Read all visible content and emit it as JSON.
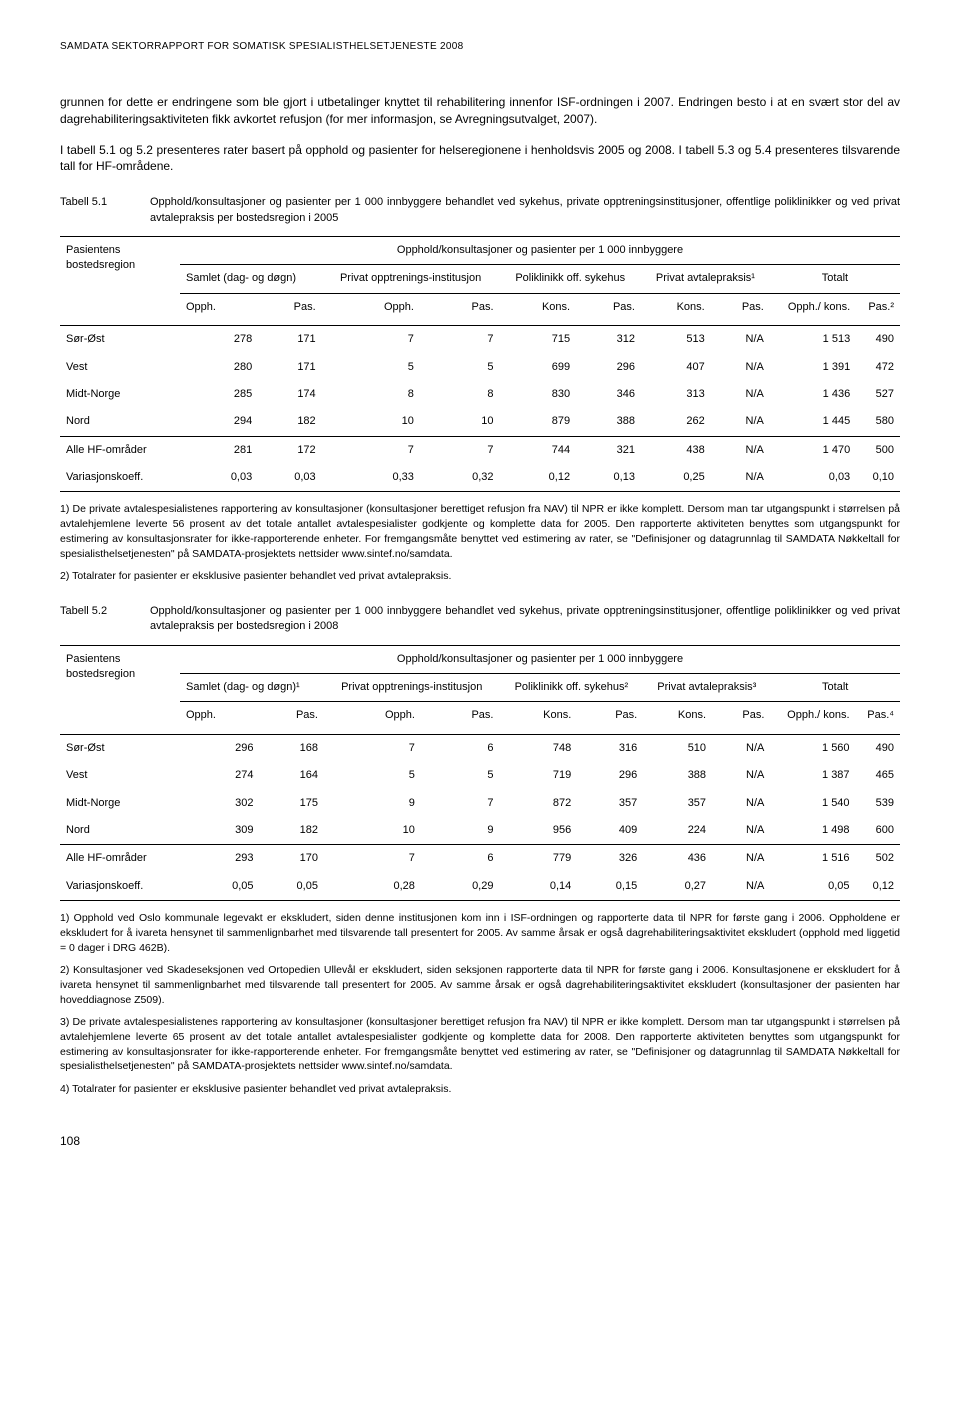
{
  "running_header": "SAMDATA SEKTORRAPPORT FOR SOMATISK SPESIALISTHELSETJENESTE 2008",
  "paragraphs": {
    "p1": "grunnen for dette er endringene som ble gjort i utbetalinger knyttet til rehabilitering innenfor ISF-ordningen i 2007. Endringen besto i at en svært stor del av dagrehabiliteringsaktiviteten fikk avkortet refusjon (for mer informasjon, se Avregningsutvalget, 2007).",
    "p2": "I tabell 5.1 og 5.2 presenteres rater basert på opphold og pasienter for helseregionene i henholdsvis 2005 og 2008. I tabell 5.3 og 5.4 presenteres tilsvarende tall for HF-områdene."
  },
  "table1": {
    "caption_label": "Tabell 5.1",
    "caption_text": "Opphold/konsultasjoner og pasienter per 1 000 innbyggere behandlet ved sykehus, private opptreningsinstitusjoner, offentlige poliklinikker og ved privat avtalepraksis per bostedsregion i 2005",
    "row_header": "Pasientens bostedsregion",
    "span_header": "Opphold/konsultasjoner og pasienter per 1 000 innbyggere",
    "group1": "Samlet (dag- og døgn)",
    "group2": "Privat opptrenings-institusjon",
    "group3": "Poliklinikk off. sykehus",
    "group4": "Privat avtalepraksis¹",
    "group5": "Totalt",
    "sub": [
      "Opph.",
      "Pas.",
      "Opph.",
      "Pas.",
      "Kons.",
      "Pas.",
      "Kons.",
      "Pas.",
      "Opph./ kons.",
      "Pas.²"
    ],
    "rows": [
      {
        "label": "Sør-Øst",
        "v": [
          "278",
          "171",
          "7",
          "7",
          "715",
          "312",
          "513",
          "N/A",
          "1 513",
          "490"
        ]
      },
      {
        "label": "Vest",
        "v": [
          "280",
          "171",
          "5",
          "5",
          "699",
          "296",
          "407",
          "N/A",
          "1 391",
          "472"
        ]
      },
      {
        "label": "Midt-Norge",
        "v": [
          "285",
          "174",
          "8",
          "8",
          "830",
          "346",
          "313",
          "N/A",
          "1 436",
          "527"
        ]
      },
      {
        "label": "Nord",
        "v": [
          "294",
          "182",
          "10",
          "10",
          "879",
          "388",
          "262",
          "N/A",
          "1 445",
          "580"
        ]
      }
    ],
    "totals": [
      {
        "label": "Alle HF-områder",
        "v": [
          "281",
          "172",
          "7",
          "7",
          "744",
          "321",
          "438",
          "N/A",
          "1 470",
          "500"
        ]
      },
      {
        "label": "Variasjonskoeff.",
        "v": [
          "0,03",
          "0,03",
          "0,33",
          "0,32",
          "0,12",
          "0,13",
          "0,25",
          "N/A",
          "0,03",
          "0,10"
        ]
      }
    ],
    "fn1": "1) De private avtalespesialistenes rapportering av konsultasjoner (konsultasjoner berettiget refusjon fra NAV) til NPR er ikke komplett. Dersom man tar utgangspunkt i størrelsen på avtalehjemlene leverte 56 prosent av det totale antallet avtalespesialister godkjente og komplette data for 2005. Den rapporterte aktiviteten benyttes som utgangspunkt for estimering av konsultasjonsrater for ikke-rapporterende enheter. For fremgangsmåte benyttet ved estimering av rater, se \"Definisjoner og datagrunnlag til SAMDATA Nøkkeltall for spesialisthelsetjenesten\" på SAMDATA-prosjektets nettsider www.sintef.no/samdata.",
    "fn2": "2) Totalrater for pasienter er eksklusive pasienter behandlet ved privat avtalepraksis."
  },
  "table2": {
    "caption_label": "Tabell 5.2",
    "caption_text": "Opphold/konsultasjoner og pasienter per 1 000 innbyggere behandlet ved sykehus, private opptreningsinstitusjoner, offentlige poliklinikker og ved privat avtalepraksis per bostedsregion i 2008",
    "row_header": "Pasientens bostedsregion",
    "span_header": "Opphold/konsultasjoner og pasienter per 1 000 innbyggere",
    "group1": "Samlet (dag- og døgn)¹",
    "group2": "Privat opptrenings-institusjon",
    "group3": "Poliklinikk off. sykehus²",
    "group4": "Privat avtalepraksis³",
    "group5": "Totalt",
    "sub": [
      "Opph.",
      "Pas.",
      "Opph.",
      "Pas.",
      "Kons.",
      "Pas.",
      "Kons.",
      "Pas.",
      "Opph./ kons.",
      "Pas.⁴"
    ],
    "rows": [
      {
        "label": "Sør-Øst",
        "v": [
          "296",
          "168",
          "7",
          "6",
          "748",
          "316",
          "510",
          "N/A",
          "1 560",
          "490"
        ]
      },
      {
        "label": "Vest",
        "v": [
          "274",
          "164",
          "5",
          "5",
          "719",
          "296",
          "388",
          "N/A",
          "1 387",
          "465"
        ]
      },
      {
        "label": "Midt-Norge",
        "v": [
          "302",
          "175",
          "9",
          "7",
          "872",
          "357",
          "357",
          "N/A",
          "1 540",
          "539"
        ]
      },
      {
        "label": "Nord",
        "v": [
          "309",
          "182",
          "10",
          "9",
          "956",
          "409",
          "224",
          "N/A",
          "1 498",
          "600"
        ]
      }
    ],
    "totals": [
      {
        "label": "Alle HF-områder",
        "v": [
          "293",
          "170",
          "7",
          "6",
          "779",
          "326",
          "436",
          "N/A",
          "1 516",
          "502"
        ]
      },
      {
        "label": "Variasjonskoeff.",
        "v": [
          "0,05",
          "0,05",
          "0,28",
          "0,29",
          "0,14",
          "0,15",
          "0,27",
          "N/A",
          "0,05",
          "0,12"
        ]
      }
    ],
    "fn1": "1) Opphold ved Oslo kommunale legevakt er ekskludert, siden denne institusjonen kom inn i ISF-ordningen og rapporterte data til NPR for første gang i 2006. Oppholdene er ekskludert for å ivareta hensynet til sammenlignbarhet med tilsvarende tall presentert for 2005. Av samme årsak er også dagrehabiliteringsaktivitet ekskludert (opphold med liggetid = 0 dager i DRG 462B).",
    "fn2": "2) Konsultasjoner ved Skadeseksjonen ved Ortopedien Ullevål er ekskludert, siden seksjonen rapporterte data til NPR for første gang i 2006. Konsultasjonene er ekskludert for å ivareta hensynet til sammenlignbarhet med tilsvarende tall presentert for 2005. Av samme årsak er også dagrehabiliteringsaktivitet ekskludert (konsultasjoner der pasienten har hoveddiagnose Z509).",
    "fn3": "3) De private avtalespesialistenes rapportering av konsultasjoner (konsultasjoner berettiget refusjon fra NAV) til NPR er ikke komplett. Dersom man tar utgangspunkt i størrelsen på avtalehjemlene leverte 65 prosent av det totale antallet avtalespesialister godkjente og komplette data for 2008. Den rapporterte aktiviteten benyttes som utgangspunkt for estimering av konsultasjonsrater for ikke-rapporterende enheter. For fremgangsmåte benyttet ved estimering av rater, se \"Definisjoner og datagrunnlag til SAMDATA Nøkkeltall for spesialisthelsetjenesten\" på SAMDATA-prosjektets nettsider www.sintef.no/samdata.",
    "fn4": "4) Totalrater for pasienter er eksklusive pasienter behandlet ved privat avtalepraksis."
  },
  "page_number": "108"
}
